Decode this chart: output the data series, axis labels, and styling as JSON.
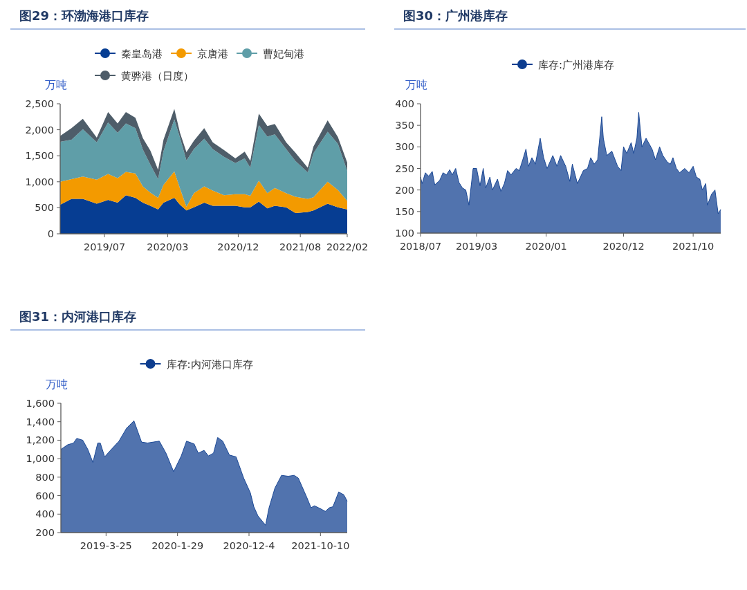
{
  "chart_data": [
    {
      "type": "area",
      "stacked": true,
      "title": "图29：环渤海港口库存",
      "ylabel": "万吨",
      "legend": "top",
      "grid": false,
      "x": [
        "2019-01-12",
        "2019-02-25",
        "2019-04-10",
        "2019-06-03",
        "2019-07-17",
        "2019-08-23",
        "2019-09-24",
        "2019-10-31",
        "2019-11-29",
        "2019-12-28",
        "2020-01-27",
        "2020-02-17",
        "2020-03-30",
        "2020-04-21",
        "2020-05-16",
        "2020-06-14",
        "2020-07-24",
        "2020-08-26",
        "2020-10-09",
        "2020-11-22",
        "2020-12-28",
        "2021-01-19",
        "2021-02-21",
        "2021-03-26",
        "2021-04-24",
        "2021-06-07",
        "2021-07-13",
        "2021-08-30",
        "2021-09-21",
        "2021-11-15",
        "2021-12-25",
        "2022-01-30"
      ],
      "xlim": [
        "2019-01-12",
        "2022-01-30"
      ],
      "xticks": [
        {
          "value": "2019-07-03",
          "label": "2019/07"
        },
        {
          "value": "2020-03-04",
          "label": "2020/03"
        },
        {
          "value": "2020-12-03",
          "label": "2020/12"
        },
        {
          "value": "2021-08-01",
          "label": "2021/08"
        },
        {
          "value": "2022-01-30",
          "label": "2022/02"
        }
      ],
      "ylim": [
        0,
        2500
      ],
      "yticks": [
        {
          "value": 0,
          "label": "0"
        },
        {
          "value": 500,
          "label": "500"
        },
        {
          "value": 1000,
          "label": "1,000"
        },
        {
          "value": 1500,
          "label": "1,500"
        },
        {
          "value": 2000,
          "label": "2,000"
        },
        {
          "value": 2500,
          "label": "2,500"
        }
      ],
      "series": [
        {
          "name": "秦皇岛港",
          "color": "#063d92",
          "values": [
            560,
            670,
            670,
            580,
            650,
            600,
            740,
            690,
            600,
            540,
            470,
            600,
            690,
            560,
            450,
            510,
            600,
            540,
            540,
            540,
            510,
            510,
            620,
            490,
            540,
            510,
            400,
            420,
            450,
            580,
            510,
            470
          ]
        },
        {
          "name": "京唐港",
          "color": "#f39a00",
          "values": [
            440,
            380,
            430,
            460,
            500,
            470,
            450,
            470,
            310,
            250,
            220,
            340,
            510,
            310,
            70,
            270,
            310,
            290,
            200,
            220,
            250,
            220,
            400,
            290,
            340,
            270,
            310,
            250,
            250,
            420,
            330,
            160
          ]
        },
        {
          "name": "曹妃甸港",
          "color": "#5f9ea8",
          "values": [
            770,
            760,
            910,
            720,
            990,
            870,
            930,
            870,
            710,
            540,
            360,
            650,
            1000,
            980,
            890,
            850,
            920,
            800,
            740,
            600,
            690,
            540,
            1070,
            1090,
            1030,
            850,
            690,
            510,
            850,
            960,
            890,
            580
          ]
        },
        {
          "name": "黄骅港（日度）",
          "color": "#4e5d69",
          "values": [
            110,
            220,
            200,
            90,
            200,
            180,
            220,
            200,
            220,
            270,
            180,
            220,
            200,
            90,
            160,
            160,
            200,
            130,
            130,
            90,
            130,
            130,
            220,
            200,
            200,
            130,
            160,
            90,
            130,
            220,
            130,
            160
          ]
        }
      ]
    },
    {
      "type": "area",
      "title": "图30：广州港库存",
      "ylabel": "万吨",
      "legend": "top",
      "grid": false,
      "x": [
        "2018-07-03",
        "2018-07-10",
        "2018-07-24",
        "2018-08-08",
        "2018-08-23",
        "2018-09-03",
        "2018-09-24",
        "2018-10-09",
        "2018-10-24",
        "2018-11-07",
        "2018-11-18",
        "2018-12-03",
        "2018-12-17",
        "2019-01-01",
        "2019-01-16",
        "2019-01-30",
        "2019-02-17",
        "2019-03-04",
        "2019-03-19",
        "2019-04-02",
        "2019-04-13",
        "2019-05-01",
        "2019-05-12",
        "2019-06-03",
        "2019-06-18",
        "2019-07-03",
        "2019-07-17",
        "2019-08-01",
        "2019-08-23",
        "2019-09-06",
        "2019-09-21",
        "2019-10-05",
        "2019-10-16",
        "2019-10-31",
        "2019-11-15",
        "2019-12-06",
        "2019-12-21",
        "2020-01-05",
        "2020-01-30",
        "2020-02-17",
        "2020-03-04",
        "2020-03-26",
        "2020-04-13",
        "2020-04-24",
        "2020-05-16",
        "2020-06-11",
        "2020-06-29",
        "2020-07-13",
        "2020-07-28",
        "2020-08-12",
        "2020-08-30",
        "2020-09-06",
        "2020-09-21",
        "2020-10-13",
        "2020-11-07",
        "2020-11-22",
        "2020-12-03",
        "2020-12-17",
        "2021-01-05",
        "2021-01-16",
        "2021-01-30",
        "2021-02-07",
        "2021-02-21",
        "2021-03-11",
        "2021-04-06",
        "2021-04-21",
        "2021-05-09",
        "2021-05-23",
        "2021-06-11",
        "2021-06-25",
        "2021-07-06",
        "2021-07-21",
        "2021-08-04",
        "2021-08-26",
        "2021-09-14",
        "2021-10-02",
        "2021-10-16",
        "2021-10-31",
        "2021-11-11",
        "2021-11-26",
        "2021-12-03",
        "2021-12-21",
        "2022-01-05",
        "2022-01-19",
        "2022-01-30"
      ],
      "xlim": [
        "2018-07-03",
        "2022-01-30"
      ],
      "xticks": [
        {
          "value": "2018-07-03",
          "label": "2018/07"
        },
        {
          "value": "2019-03-04",
          "label": "2019/03"
        },
        {
          "value": "2020-01-01",
          "label": "2020/01"
        },
        {
          "value": "2020-12-03",
          "label": "2020/12"
        },
        {
          "value": "2021-10-02",
          "label": "2021/10"
        }
      ],
      "ylim": [
        100,
        400
      ],
      "yticks": [
        100,
        150,
        200,
        250,
        300,
        350,
        400
      ],
      "series": [
        {
          "name": "库存:广州港库存",
          "color": "#0d3d8f",
          "values": [
            230,
            215,
            240,
            232,
            243,
            212,
            222,
            240,
            235,
            247,
            235,
            250,
            218,
            205,
            200,
            165,
            250,
            250,
            210,
            250,
            205,
            230,
            200,
            225,
            197,
            215,
            245,
            235,
            250,
            245,
            270,
            295,
            255,
            275,
            260,
            320,
            275,
            250,
            280,
            255,
            280,
            255,
            220,
            260,
            215,
            245,
            250,
            275,
            260,
            270,
            370,
            320,
            280,
            290,
            255,
            245,
            300,
            285,
            310,
            285,
            320,
            380,
            300,
            320,
            295,
            270,
            300,
            280,
            265,
            260,
            275,
            250,
            240,
            250,
            240,
            255,
            230,
            225,
            200,
            215,
            165,
            190,
            200,
            145,
            155
          ]
        }
      ]
    },
    {
      "type": "area",
      "title": "图31：内河港口库存",
      "ylabel": "万吨",
      "legend": "top",
      "grid": false,
      "x": [
        "2018-09-10",
        "2018-10-09",
        "2018-11-04",
        "2018-11-18",
        "2018-12-14",
        "2019-01-05",
        "2019-01-27",
        "2019-02-17",
        "2019-02-28",
        "2019-03-19",
        "2019-04-13",
        "2019-05-20",
        "2019-06-22",
        "2019-07-24",
        "2019-08-26",
        "2019-09-21",
        "2019-10-16",
        "2019-11-11",
        "2019-12-10",
        "2020-01-12",
        "2020-02-14",
        "2020-03-08",
        "2020-04-10",
        "2020-04-28",
        "2020-05-23",
        "2020-06-11",
        "2020-07-03",
        "2020-07-21",
        "2020-08-12",
        "2020-09-10",
        "2020-10-09",
        "2020-11-11",
        "2020-12-10",
        "2020-12-25",
        "2021-01-12",
        "2021-02-14",
        "2021-02-28",
        "2021-03-26",
        "2021-04-24",
        "2021-05-23",
        "2021-06-18",
        "2021-07-06",
        "2021-08-12",
        "2021-08-30",
        "2021-09-14",
        "2021-10-09",
        "2021-10-31",
        "2021-11-18",
        "2021-12-03",
        "2021-12-28",
        "2022-01-19",
        "2022-02-03"
      ],
      "xlim": [
        "2018-09-10",
        "2022-02-03"
      ],
      "xticks": [
        {
          "value": "2019-03-25",
          "label": "2019-3-25"
        },
        {
          "value": "2020-01-29",
          "label": "2020-1-29"
        },
        {
          "value": "2020-12-04",
          "label": "2020-12-4"
        },
        {
          "value": "2021-10-10",
          "label": "2021-10-10"
        }
      ],
      "ylim": [
        200,
        1600
      ],
      "yticks": [
        {
          "value": 200,
          "label": "200"
        },
        {
          "value": 400,
          "label": "400"
        },
        {
          "value": 600,
          "label": "600"
        },
        {
          "value": 800,
          "label": "800"
        },
        {
          "value": 1000,
          "label": "1,000"
        },
        {
          "value": 1200,
          "label": "1,200"
        },
        {
          "value": 1400,
          "label": "1,400"
        },
        {
          "value": 1600,
          "label": "1,600"
        }
      ],
      "series": [
        {
          "name": "库存:内河港口库存",
          "color": "#0d3d8f",
          "values": [
            1100,
            1150,
            1170,
            1220,
            1200,
            1100,
            960,
            1170,
            1170,
            1020,
            1090,
            1190,
            1330,
            1410,
            1180,
            1170,
            1180,
            1190,
            1060,
            860,
            1030,
            1190,
            1160,
            1060,
            1090,
            1030,
            1060,
            1230,
            1190,
            1040,
            1020,
            790,
            630,
            480,
            380,
            280,
            460,
            680,
            820,
            810,
            820,
            790,
            580,
            470,
            490,
            460,
            430,
            470,
            480,
            640,
            610,
            540
          ]
        }
      ]
    }
  ]
}
